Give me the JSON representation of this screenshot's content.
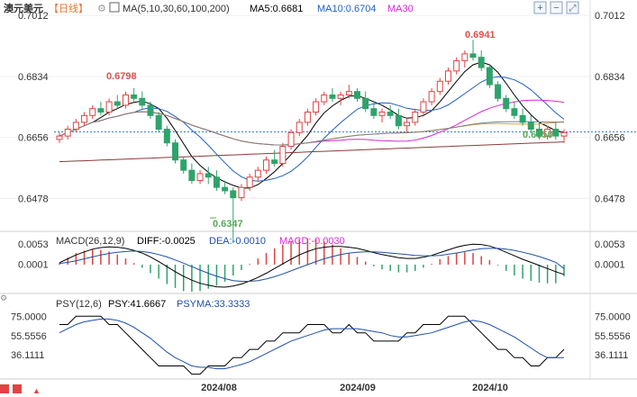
{
  "header": {
    "symbol": "澳元美元",
    "period": "【日线】",
    "ma_label": "MA(5,10,30,60,100,200)",
    "ma5": "MA5:0.6681",
    "ma10": "MA10:0.6704",
    "ma30": "MA30"
  },
  "price_axis": {
    "ticks": [
      "0.7012",
      "0.6834",
      "0.6656",
      "0.6478"
    ],
    "current_line": 0.6672
  },
  "annotations": {
    "high1": "0.6798",
    "high2": "0.6941",
    "low1": "0.6347",
    "low2": "0.6650"
  },
  "macd_panel": {
    "label": "MACD(26,12,9)",
    "diff": "DIFF:-0.0025",
    "dea": "DEA:-0.0010",
    "macd": "MACD:-0.0030",
    "ticks": [
      "0.0053",
      "0.0001"
    ]
  },
  "psy_panel": {
    "label": "PSY(12,6)",
    "psy": "PSY:41.6667",
    "psyma": "PSYMA:33.3333",
    "ticks": [
      "75.0000",
      "55.5556",
      "36.1111"
    ]
  },
  "x_axis": {
    "dates": [
      "2024/08",
      "2024/09",
      "2024/10"
    ]
  },
  "colors": {
    "up": "#e04343",
    "down": "#2ea36b",
    "ma5": "#000000",
    "ma10": "#1f5fbf",
    "ma30": "#d926d9",
    "ma60": "#e8a23a",
    "ma100": "#7f7f7f",
    "ma200": "#8b3a3a",
    "psy": "#000000",
    "psyma": "#1f4fa8",
    "current": "#3c7fc9"
  },
  "chart_data": {
    "type": "candlestick",
    "price_range": [
      0.64,
      0.701
    ],
    "candles": [
      [
        0.665,
        0.667,
        0.664,
        0.666
      ],
      [
        0.666,
        0.669,
        0.665,
        0.668
      ],
      [
        0.668,
        0.671,
        0.667,
        0.67
      ],
      [
        0.67,
        0.673,
        0.669,
        0.672
      ],
      [
        0.672,
        0.675,
        0.671,
        0.674
      ],
      [
        0.674,
        0.676,
        0.672,
        0.673
      ],
      [
        0.673,
        0.677,
        0.672,
        0.676
      ],
      [
        0.676,
        0.678,
        0.674,
        0.675
      ],
      [
        0.675,
        0.679,
        0.674,
        0.678
      ],
      [
        0.678,
        0.68,
        0.676,
        0.677
      ],
      [
        0.677,
        0.679,
        0.674,
        0.675
      ],
      [
        0.675,
        0.676,
        0.671,
        0.672
      ],
      [
        0.672,
        0.673,
        0.667,
        0.668
      ],
      [
        0.668,
        0.669,
        0.663,
        0.664
      ],
      [
        0.664,
        0.665,
        0.658,
        0.659
      ],
      [
        0.659,
        0.66,
        0.655,
        0.656
      ],
      [
        0.656,
        0.658,
        0.652,
        0.653
      ],
      [
        0.653,
        0.656,
        0.652,
        0.655
      ],
      [
        0.655,
        0.657,
        0.652,
        0.654
      ],
      [
        0.654,
        0.656,
        0.65,
        0.651
      ],
      [
        0.651,
        0.653,
        0.649,
        0.65
      ],
      [
        0.65,
        0.651,
        0.6347,
        0.648
      ],
      [
        0.648,
        0.652,
        0.647,
        0.651
      ],
      [
        0.651,
        0.655,
        0.65,
        0.654
      ],
      [
        0.654,
        0.657,
        0.653,
        0.656
      ],
      [
        0.656,
        0.66,
        0.655,
        0.659
      ],
      [
        0.659,
        0.662,
        0.657,
        0.658
      ],
      [
        0.658,
        0.664,
        0.657,
        0.663
      ],
      [
        0.663,
        0.668,
        0.662,
        0.667
      ],
      [
        0.667,
        0.671,
        0.666,
        0.67
      ],
      [
        0.67,
        0.674,
        0.669,
        0.673
      ],
      [
        0.673,
        0.677,
        0.672,
        0.676
      ],
      [
        0.676,
        0.679,
        0.675,
        0.678
      ],
      [
        0.678,
        0.68,
        0.676,
        0.677
      ],
      [
        0.677,
        0.679,
        0.675,
        0.678
      ],
      [
        0.678,
        0.681,
        0.677,
        0.679
      ],
      [
        0.679,
        0.68,
        0.676,
        0.677
      ],
      [
        0.677,
        0.679,
        0.673,
        0.674
      ],
      [
        0.674,
        0.676,
        0.671,
        0.672
      ],
      [
        0.672,
        0.674,
        0.67,
        0.673
      ],
      [
        0.673,
        0.675,
        0.671,
        0.672
      ],
      [
        0.672,
        0.674,
        0.668,
        0.669
      ],
      [
        0.669,
        0.671,
        0.667,
        0.67
      ],
      [
        0.67,
        0.674,
        0.669,
        0.673
      ],
      [
        0.673,
        0.677,
        0.672,
        0.676
      ],
      [
        0.676,
        0.68,
        0.675,
        0.679
      ],
      [
        0.679,
        0.683,
        0.678,
        0.682
      ],
      [
        0.682,
        0.686,
        0.681,
        0.685
      ],
      [
        0.685,
        0.689,
        0.684,
        0.688
      ],
      [
        0.688,
        0.691,
        0.686,
        0.69
      ],
      [
        0.69,
        0.6941,
        0.688,
        0.689
      ],
      [
        0.689,
        0.691,
        0.685,
        0.686
      ],
      [
        0.686,
        0.687,
        0.68,
        0.681
      ],
      [
        0.681,
        0.682,
        0.676,
        0.677
      ],
      [
        0.677,
        0.678,
        0.673,
        0.674
      ],
      [
        0.674,
        0.676,
        0.671,
        0.672
      ],
      [
        0.672,
        0.674,
        0.669,
        0.67
      ],
      [
        0.67,
        0.672,
        0.667,
        0.668
      ],
      [
        0.668,
        0.67,
        0.665,
        0.666
      ],
      [
        0.666,
        0.669,
        0.665,
        0.668
      ],
      [
        0.668,
        0.67,
        0.665,
        0.666
      ],
      [
        0.666,
        0.668,
        0.664,
        0.667
      ]
    ],
    "macd_diff": [
      0.0005,
      0.0015,
      0.0025,
      0.0033,
      0.004,
      0.0044,
      0.0046,
      0.0045,
      0.0042,
      0.0037,
      0.003,
      0.002,
      0.0008,
      -0.0005,
      -0.0018,
      -0.003,
      -0.004,
      -0.0048,
      -0.0053,
      -0.0057,
      -0.0058,
      -0.0055,
      -0.005,
      -0.0042,
      -0.0033,
      -0.0022,
      -0.001,
      0.0002,
      0.0014,
      0.0025,
      0.0034,
      0.0041,
      0.0045,
      0.0047,
      0.0047,
      0.0045,
      0.0042,
      0.0037,
      0.0031,
      0.0026,
      0.0022,
      0.0018,
      0.0016,
      0.0016,
      0.0019,
      0.0024,
      0.0031,
      0.0038,
      0.0045,
      0.005,
      0.0053,
      0.0052,
      0.0048,
      0.0041,
      0.0032,
      0.0023,
      0.0014,
      0.0006,
      -0.0002,
      -0.001,
      -0.0018,
      -0.0025
    ],
    "macd_dea": [
      0.0003,
      0.0006,
      0.001,
      0.0015,
      0.002,
      0.0025,
      0.0029,
      0.0032,
      0.0034,
      0.0035,
      0.0034,
      0.0031,
      0.0026,
      0.002,
      0.0012,
      0.0004,
      -0.0005,
      -0.0014,
      -0.0022,
      -0.003,
      -0.0036,
      -0.0041,
      -0.0043,
      -0.0043,
      -0.0041,
      -0.0037,
      -0.0031,
      -0.0024,
      -0.0016,
      -0.0008,
      0.0,
      0.0008,
      0.0015,
      0.0021,
      0.0026,
      0.003,
      0.0032,
      0.0033,
      0.0033,
      0.0032,
      0.003,
      0.0028,
      0.0026,
      0.0024,
      0.0023,
      0.0023,
      0.0024,
      0.0027,
      0.003,
      0.0034,
      0.0038,
      0.0041,
      0.0042,
      0.0042,
      0.004,
      0.0037,
      0.0032,
      0.0027,
      0.0021,
      0.0014,
      0.0006,
      -0.001
    ],
    "psy": [
      66.7,
      66.7,
      75,
      75,
      75,
      75,
      66.7,
      66.7,
      58.3,
      50,
      41.7,
      33.3,
      25,
      25,
      25,
      25,
      16.7,
      16.7,
      25,
      25,
      25,
      33.3,
      33.3,
      41.7,
      41.7,
      50,
      50,
      58.3,
      58.3,
      58.3,
      66.7,
      66.7,
      66.7,
      58.3,
      58.3,
      66.7,
      58.3,
      58.3,
      50,
      50,
      50,
      50,
      58.3,
      58.3,
      66.7,
      66.7,
      66.7,
      75,
      75,
      75,
      66.7,
      58.3,
      50,
      41.7,
      41.7,
      33.3,
      33.3,
      25,
      25,
      33.3,
      33.3,
      41.7
    ],
    "psyma": [
      58.3,
      62.5,
      66.7,
      69.4,
      70.8,
      72.2,
      72.2,
      70.8,
      68.1,
      63.9,
      58.3,
      52.8,
      45.8,
      38.9,
      33.3,
      29.2,
      25,
      23.6,
      23.6,
      22.2,
      22.2,
      24.3,
      26.4,
      29.2,
      33.3,
      37.5,
      41.7,
      45.8,
      50,
      52.8,
      55.6,
      58.3,
      61.1,
      62.5,
      62.5,
      62.5,
      62.5,
      61.1,
      59.7,
      58.3,
      55.6,
      54.2,
      54.2,
      55.6,
      56.9,
      58.3,
      61.1,
      63.9,
      66.7,
      69.4,
      70.8,
      69.4,
      66.7,
      62.5,
      58.3,
      54.2,
      48.6,
      43.1,
      37.5,
      33.3,
      33.3,
      33.3
    ],
    "psy_range": [
      20,
      78
    ],
    "macd_range": [
      -0.0065,
      0.0065
    ]
  }
}
